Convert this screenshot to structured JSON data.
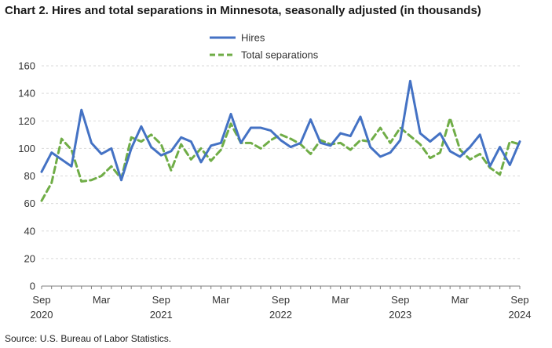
{
  "title": "Chart 2. Hires and total separations in Minnesota, seasonally adjusted (in thousands)",
  "source": "Source: U.S. Bureau of Labor Statistics.",
  "colors": {
    "hires": "#4472C4",
    "separations": "#70AD47",
    "grid": "#d9d9d9",
    "axis": "#7f7f7f"
  },
  "chart_data": {
    "type": "line",
    "title": "Chart 2. Hires and total separations in Minnesota, seasonally adjusted (in thousands)",
    "xlabel": "",
    "ylabel": "",
    "ylim": [
      0,
      160
    ],
    "yticks": [
      0,
      20,
      40,
      60,
      80,
      100,
      120,
      140,
      160
    ],
    "grid": true,
    "legend_position": "top-center",
    "x_tick_labels": [
      {
        "index": 0,
        "line1": "Sep",
        "line2": "2020"
      },
      {
        "index": 6,
        "line1": "Mar",
        "line2": ""
      },
      {
        "index": 12,
        "line1": "Sep",
        "line2": "2021"
      },
      {
        "index": 18,
        "line1": "Mar",
        "line2": ""
      },
      {
        "index": 24,
        "line1": "Sep",
        "line2": "2022"
      },
      {
        "index": 30,
        "line1": "Mar",
        "line2": ""
      },
      {
        "index": 36,
        "line1": "Sep",
        "line2": "2023"
      },
      {
        "index": 42,
        "line1": "Mar",
        "line2": ""
      },
      {
        "index": 48,
        "line1": "Sep",
        "line2": "2024"
      }
    ],
    "series": [
      {
        "name": "Hires",
        "style": "solid",
        "values": [
          83,
          97,
          92,
          87,
          128,
          104,
          96,
          100,
          77,
          100,
          116,
          101,
          95,
          98,
          108,
          105,
          90,
          102,
          104,
          125,
          104,
          115,
          115,
          113,
          106,
          101,
          104,
          121,
          104,
          102,
          111,
          109,
          123,
          101,
          94,
          97,
          106,
          149,
          111,
          105,
          111,
          98,
          94,
          101,
          110,
          87,
          101,
          88,
          105
        ]
      },
      {
        "name": "Total separations",
        "style": "dashed",
        "values": [
          62,
          75,
          107,
          99,
          76,
          77,
          80,
          87,
          78,
          108,
          105,
          110,
          103,
          84,
          103,
          92,
          100,
          91,
          99,
          118,
          104,
          104,
          100,
          106,
          110,
          107,
          103,
          96,
          106,
          103,
          104,
          99,
          106,
          105,
          115,
          104,
          115,
          109,
          103,
          93,
          97,
          122,
          99,
          92,
          96,
          86,
          81,
          105,
          103
        ]
      }
    ]
  }
}
